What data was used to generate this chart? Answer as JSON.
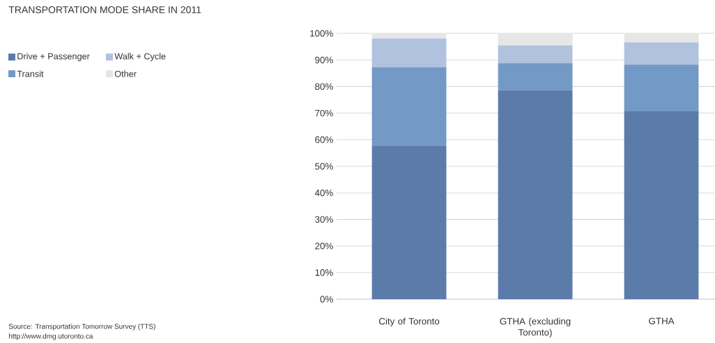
{
  "chart_data": {
    "type": "bar",
    "stacked": true,
    "title": "TRANSPORTATION MODE SHARE IN 2011",
    "categories": [
      "City of Toronto",
      "GTHA (excluding Toronto)",
      "GTHA"
    ],
    "series": [
      {
        "name": "Drive + Passenger",
        "color": "#5b7bab",
        "values": [
          57.8,
          78.6,
          70.7
        ]
      },
      {
        "name": "Transit",
        "color": "#7399c6",
        "values": [
          29.5,
          10.2,
          17.6
        ]
      },
      {
        "name": "Walk + Cycle",
        "color": "#b1c2df",
        "values": [
          10.8,
          6.7,
          8.3
        ]
      },
      {
        "name": "Other",
        "color": "#e6e6e6",
        "values": [
          1.9,
          4.5,
          3.4
        ]
      }
    ],
    "ylim": [
      0,
      100
    ],
    "yticks": [
      {
        "value": 0,
        "label": "0%"
      },
      {
        "value": 10,
        "label": "10%"
      },
      {
        "value": 20,
        "label": "20%"
      },
      {
        "value": 30,
        "label": "30%"
      },
      {
        "value": 40,
        "label": "40%"
      },
      {
        "value": 50,
        "label": "50%"
      },
      {
        "value": 60,
        "label": "60%"
      },
      {
        "value": 70,
        "label": "70%"
      },
      {
        "value": 80,
        "label": "80%"
      },
      {
        "value": 90,
        "label": "90%"
      },
      {
        "value": 100,
        "label": "100%"
      }
    ],
    "grid": "y",
    "legend": "left",
    "annotations": [
      "Source: Transportation Tomorrow Survey (TTS)",
      "http://www.dmg.utoronto.ca"
    ]
  }
}
